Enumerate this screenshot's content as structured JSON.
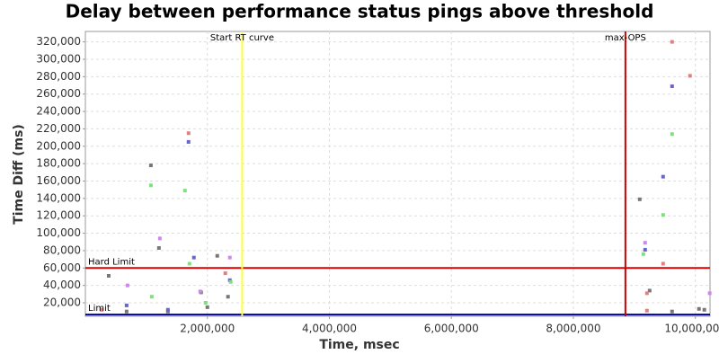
{
  "chart_data": {
    "type": "scatter",
    "title": "Delay between performance status pings above threshold",
    "xlabel": "Time, msec",
    "ylabel": "Time Diff (ms)",
    "xlim": [
      0,
      10240000
    ],
    "ylim": [
      4500,
      332000
    ],
    "xticks": [
      {
        "value": 2000000,
        "label": "2,000,000"
      },
      {
        "value": 4000000,
        "label": "4,000,000"
      },
      {
        "value": 6000000,
        "label": "6,000,000"
      },
      {
        "value": 8000000,
        "label": "8,000,000"
      },
      {
        "value": 10000000,
        "label": "10,000,000"
      }
    ],
    "yticks": [
      {
        "value": 20000,
        "label": "20,000"
      },
      {
        "value": 40000,
        "label": "40,000"
      },
      {
        "value": 60000,
        "label": "60,000"
      },
      {
        "value": 80000,
        "label": "80,000"
      },
      {
        "value": 100000,
        "label": "100,000"
      },
      {
        "value": 120000,
        "label": "120,000"
      },
      {
        "value": 140000,
        "label": "140,000"
      },
      {
        "value": 160000,
        "label": "160,000"
      },
      {
        "value": 180000,
        "label": "180,000"
      },
      {
        "value": 200000,
        "label": "200,000"
      },
      {
        "value": 220000,
        "label": "220,000"
      },
      {
        "value": 240000,
        "label": "240,000"
      },
      {
        "value": 260000,
        "label": "260,000"
      },
      {
        "value": 280000,
        "label": "280,000"
      },
      {
        "value": 300000,
        "label": "300,000"
      },
      {
        "value": 320000,
        "label": "320,000"
      }
    ],
    "grid": true,
    "annotations": [
      {
        "label": "Hard Limit",
        "axis": "y",
        "value": 60000,
        "color": "#dd0000"
      },
      {
        "label": "Limit",
        "axis": "y",
        "value": 6500,
        "color": "#000099"
      },
      {
        "label": "Start RT curve",
        "axis": "x",
        "value": 2570000,
        "color": "#ffff33"
      },
      {
        "label": "max-OPS",
        "axis": "x",
        "value": 8853000,
        "color": "#cc0000"
      }
    ],
    "series": [
      {
        "color": "#777777",
        "x": [
          382000,
          1074000,
          1206000,
          2162000,
          1897000,
          2338000,
          9088000,
          9250000,
          9618000,
          10059000,
          10147000,
          676000,
          1353000,
          2000000
        ],
        "values": [
          51000,
          178000,
          83000,
          74000,
          32000,
          27000,
          139000,
          34000,
          10000,
          13000,
          12000,
          10000,
          10000,
          15000
        ]
      },
      {
        "color": "#6666cc",
        "x": [
          1691000,
          1779000,
          9176000,
          9618000,
          9471000,
          2368000,
          676000,
          1353000
        ],
        "values": [
          205000,
          72000,
          81000,
          269000,
          165000,
          46000,
          17000,
          12000
        ]
      },
      {
        "color": "#e08080",
        "x": [
          1691000,
          9618000,
          9912000,
          9471000,
          9206000,
          2294000,
          265000,
          9206000
        ],
        "values": [
          215000,
          320000,
          281000,
          65000,
          31000,
          54000,
          12000,
          11000
        ]
      },
      {
        "color": "#80e080",
        "x": [
          1074000,
          1632000,
          9618000,
          9471000,
          1706000,
          9147000,
          1088000,
          2382000,
          1971000
        ],
        "values": [
          155000,
          149000,
          214000,
          121000,
          65000,
          76000,
          27000,
          44000,
          20000
        ]
      },
      {
        "color": "#cc88ee",
        "x": [
          1221000,
          691000,
          9176000,
          10235000,
          1882000,
          2368000
        ],
        "values": [
          94000,
          40000,
          89000,
          31000,
          33000,
          72000
        ]
      }
    ]
  }
}
